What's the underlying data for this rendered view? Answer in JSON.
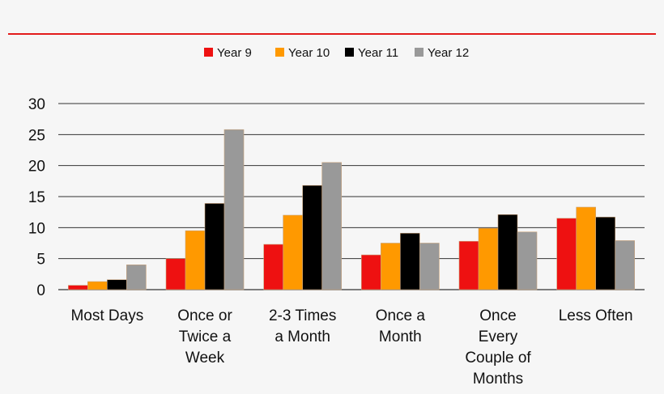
{
  "chart_data": {
    "type": "bar",
    "title": "",
    "xlabel": "",
    "ylabel": "",
    "ylim": [
      0,
      30
    ],
    "yticks": [
      0,
      5,
      10,
      15,
      20,
      25,
      30
    ],
    "grid": true,
    "legend_position": "top-center",
    "categories": [
      [
        "Most Days"
      ],
      [
        "Once or",
        "Twice a",
        "Week"
      ],
      [
        "2-3 Times",
        "a Month"
      ],
      [
        "Once a",
        "Month"
      ],
      [
        "Once",
        "Every",
        "Couple of",
        "Months"
      ],
      [
        "Less Often"
      ]
    ],
    "series": [
      {
        "name": "Year 9",
        "color": "#ee1111",
        "values": [
          0.7,
          5.0,
          7.3,
          5.6,
          7.8,
          11.5
        ]
      },
      {
        "name": "Year 10",
        "color": "#ff9900",
        "values": [
          1.3,
          9.5,
          12.0,
          7.5,
          9.9,
          13.3
        ]
      },
      {
        "name": "Year 11",
        "color": "#000000",
        "values": [
          1.6,
          13.9,
          16.8,
          9.1,
          12.1,
          11.7
        ]
      },
      {
        "name": "Year 12",
        "color": "#999999",
        "values": [
          4.0,
          25.8,
          20.5,
          7.5,
          9.3,
          7.9
        ]
      }
    ],
    "accent_line_color": "#e31b1b"
  }
}
